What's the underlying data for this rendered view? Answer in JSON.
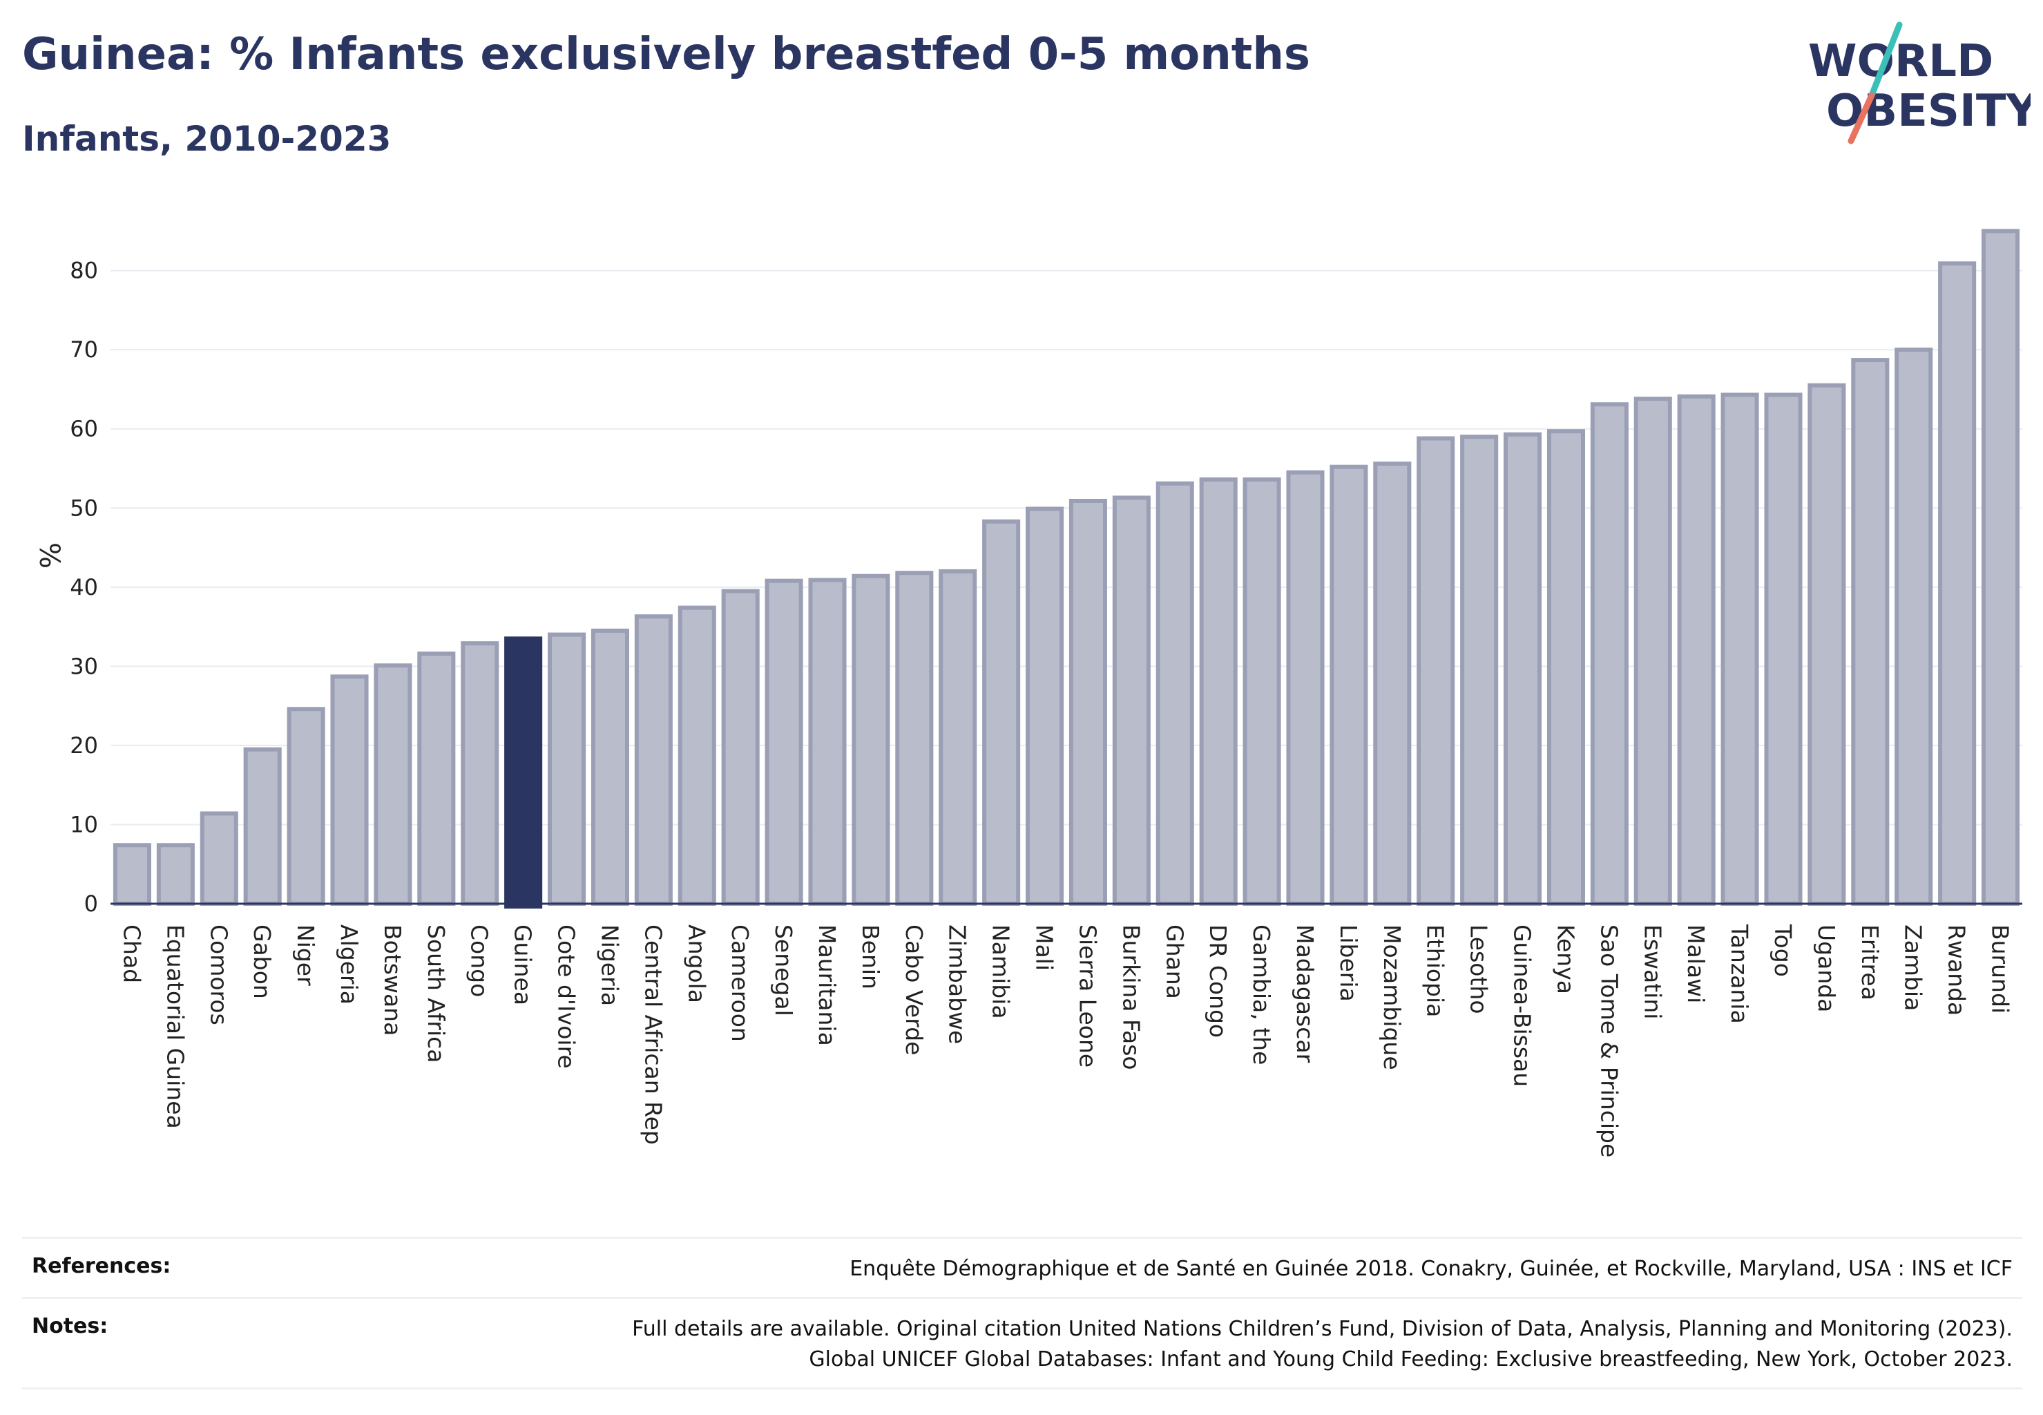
{
  "header": {
    "title": "Guinea: % Infants exclusively breastfed 0-5 months",
    "subtitle": "Infants, 2010-2023"
  },
  "logo": {
    "line1": "WORLD",
    "line2": "OBESITY"
  },
  "colors": {
    "bar": "#b8bccb",
    "bar_border": "#9a9fb5",
    "highlight": "#2b3561",
    "grid": "#e9ebf0",
    "logo_teal": "#3bbfb9",
    "logo_coral": "#e8735f"
  },
  "chart_data": {
    "type": "bar",
    "highlight": "Guinea",
    "ylabel": "%",
    "ylim": [
      0,
      88
    ],
    "yticks": [
      0,
      10,
      20,
      30,
      40,
      50,
      60,
      70,
      80
    ],
    "grid": true,
    "categories": [
      "Chad",
      "Equatorial Guinea",
      "Comoros",
      "Gabon",
      "Niger",
      "Algeria",
      "Botswana",
      "South Africa",
      "Congo",
      "Guinea",
      "Cote d'Ivoire",
      "Nigeria",
      "Central African Rep",
      "Angola",
      "Cameroon",
      "Senegal",
      "Mauritania",
      "Benin",
      "Cabo Verde",
      "Zimbabwe",
      "Namibia",
      "Mali",
      "Sierra Leone",
      "Burkina Faso",
      "Ghana",
      "DR Congo",
      "Gambia, the",
      "Madagascar",
      "Liberia",
      "Mozambique",
      "Ethiopia",
      "Lesotho",
      "Guinea-Bissau",
      "Kenya",
      "Sao Tome & Principe",
      "Eswatini",
      "Malawi",
      "Tanzania",
      "Togo",
      "Uganda",
      "Eritrea",
      "Zambia",
      "Rwanda",
      "Burundi"
    ],
    "values": [
      7.4,
      7.4,
      11.4,
      19.5,
      24.6,
      28.7,
      30.1,
      31.6,
      32.9,
      33.5,
      34.0,
      34.5,
      36.3,
      37.4,
      39.5,
      40.8,
      40.9,
      41.4,
      41.8,
      42.0,
      48.3,
      49.9,
      50.9,
      51.3,
      53.1,
      53.6,
      53.6,
      54.5,
      55.2,
      55.6,
      58.8,
      59.0,
      59.3,
      59.7,
      63.1,
      63.8,
      64.1,
      64.3,
      64.3,
      65.5,
      68.7,
      70.0,
      80.9,
      85.0
    ]
  },
  "footer": {
    "references_label": "References:",
    "references_text": "Enquête Démographique et de Santé en Guinée 2018. Conakry, Guinée, et Rockville, Maryland, USA : INS et ICF",
    "notes_label": "Notes:",
    "notes_line1": "Full details are available. Original citation United Nations Children’s Fund, Division of Data, Analysis, Planning and Monitoring (2023).",
    "notes_line2": "Global UNICEF Global Databases: Infant and Young Child Feeding: Exclusive breastfeeding, New York, October 2023."
  }
}
